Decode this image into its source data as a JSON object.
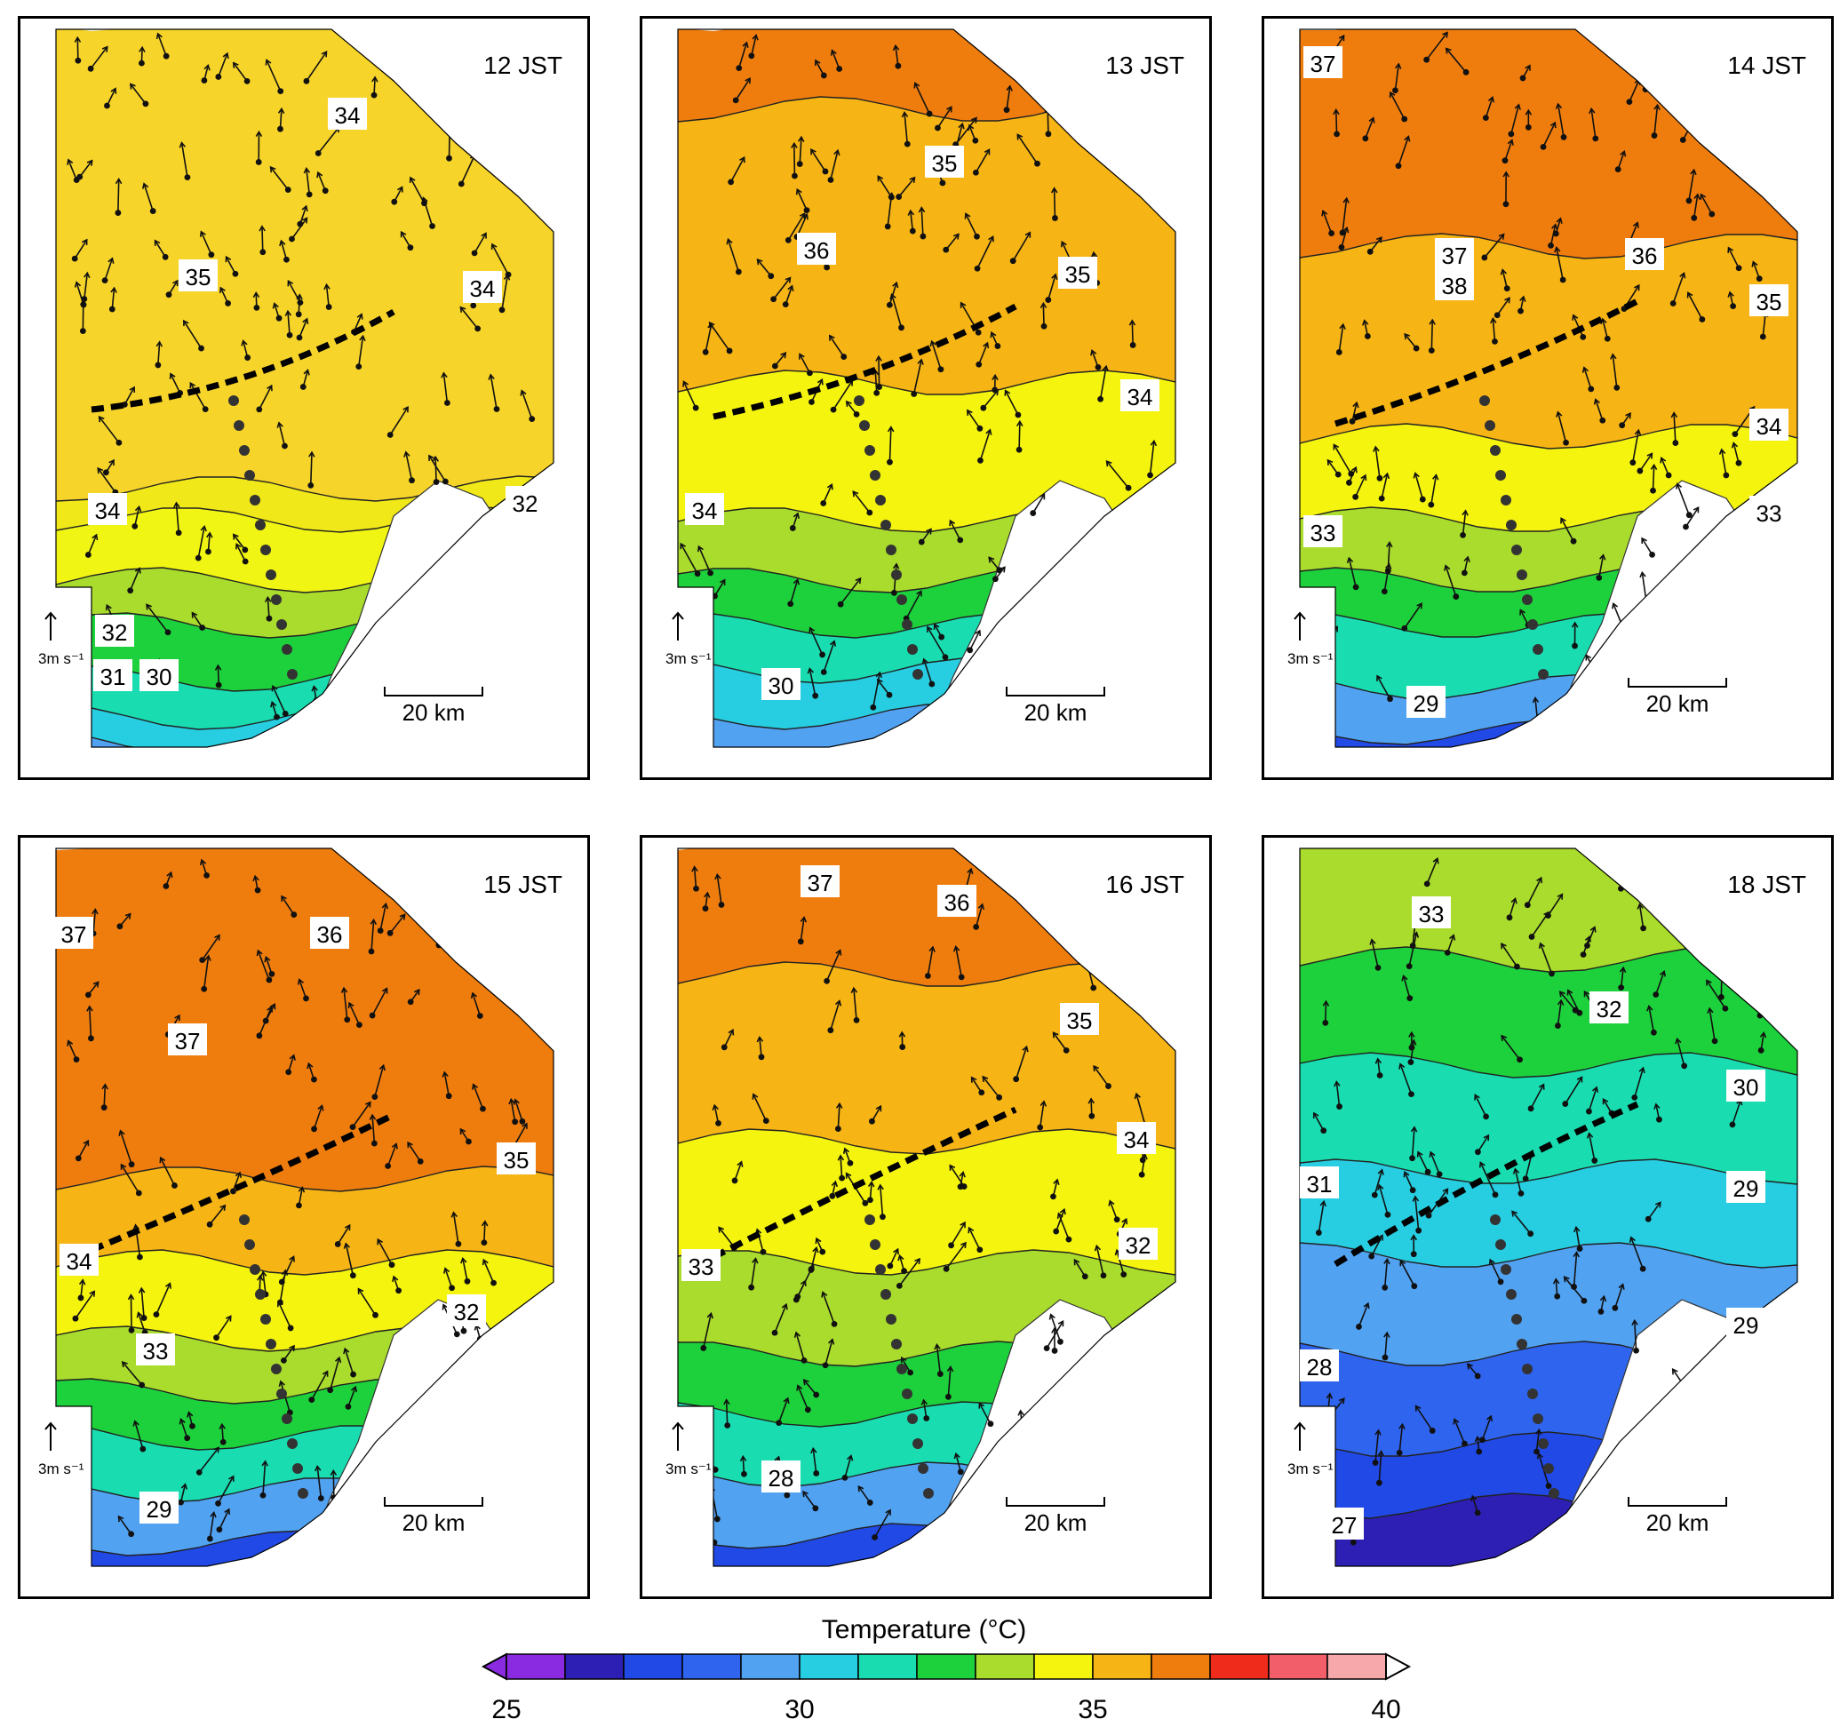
{
  "panels": [
    {
      "time": "12 JST",
      "labels": [
        "34",
        "35",
        "34",
        "34",
        "32",
        "32",
        "31",
        "30"
      ],
      "scale": {
        "arrow": "3m s⁻¹",
        "bar": "20 km"
      },
      "zones": [
        "#f7d42a",
        "#f0e818",
        "#f1f513",
        "#a9dc2c",
        "#1dd13c",
        "#19ddb1",
        "#27cde0",
        "#52a2f2"
      ],
      "levels": [
        0,
        0.62,
        0.66,
        0.74,
        0.8,
        0.87,
        0.92,
        0.95
      ]
    },
    {
      "time": "13 JST",
      "labels": [
        "35",
        "36",
        "35",
        "34",
        "34",
        "30"
      ],
      "scale": {
        "arrow": "3m s⁻¹",
        "bar": "20 km"
      },
      "zones": [
        "#ef7d0e",
        "#f6b415",
        "#f5f40f",
        "#a9dc2c",
        "#1dd13c",
        "#19ddb1",
        "#27cde0",
        "#52a2f2"
      ],
      "levels": [
        0,
        0.12,
        0.48,
        0.66,
        0.74,
        0.8,
        0.86,
        0.92
      ]
    },
    {
      "time": "14 JST",
      "labels": [
        "37",
        "37",
        "38",
        "36",
        "35",
        "34",
        "33",
        "33",
        "29"
      ],
      "scale": {
        "arrow": "3m s⁻¹",
        "bar": "20 km"
      },
      "zones": [
        "#ef7d0e",
        "#f6b415",
        "#f5f40f",
        "#a9dc2c",
        "#1dd13c",
        "#19ddb1",
        "#52a2f2",
        "#2149e6"
      ],
      "levels": [
        0,
        0.3,
        0.55,
        0.66,
        0.74,
        0.8,
        0.88,
        0.94
      ]
    },
    {
      "time": "15 JST",
      "labels": [
        "37",
        "36",
        "37",
        "35",
        "34",
        "32",
        "33",
        "29"
      ],
      "scale": {
        "arrow": "3m s⁻¹",
        "bar": "20 km"
      },
      "zones": [
        "#ef7d0e",
        "#f6b415",
        "#f5f40f",
        "#a9dc2c",
        "#1dd13c",
        "#19ddb1",
        "#52a2f2",
        "#2149e6"
      ],
      "levels": [
        0,
        0.45,
        0.56,
        0.66,
        0.73,
        0.79,
        0.86,
        0.93
      ]
    },
    {
      "time": "16 JST",
      "labels": [
        "37",
        "36",
        "35",
        "34",
        "33",
        "32",
        "28"
      ],
      "scale": {
        "arrow": "3m s⁻¹",
        "bar": "20 km"
      },
      "zones": [
        "#ef7d0e",
        "#f6b415",
        "#f5f40f",
        "#a9dc2c",
        "#1dd13c",
        "#19ddb1",
        "#52a2f2",
        "#2149e6"
      ],
      "levels": [
        0,
        0.18,
        0.4,
        0.56,
        0.68,
        0.76,
        0.84,
        0.92
      ]
    },
    {
      "time": "18 JST",
      "labels": [
        "33",
        "32",
        "30",
        "31",
        "29",
        "28",
        "29",
        "27"
      ],
      "scale": {
        "arrow": "3m s⁻¹",
        "bar": "20 km"
      },
      "zones": [
        "#a9dc2c",
        "#1dd13c",
        "#19ddb1",
        "#27cde0",
        "#52a2f2",
        "#2f64ee",
        "#2149e6",
        "#2d1fb3"
      ],
      "levels": [
        0,
        0.16,
        0.3,
        0.44,
        0.55,
        0.68,
        0.8,
        0.88
      ]
    }
  ],
  "colorbar": {
    "title": "Temperature (°C)",
    "ticks": [
      "25",
      "30",
      "35",
      "40"
    ],
    "colors": [
      "#8a2be2",
      "#2d1fb3",
      "#2149e6",
      "#2f64ee",
      "#52a2f2",
      "#27cde0",
      "#19ddb1",
      "#1dd13c",
      "#a9dc2c",
      "#f5f40f",
      "#f6b415",
      "#ef7d0e",
      "#ef2c1c",
      "#f25e6a",
      "#f7a8aa"
    ]
  }
}
